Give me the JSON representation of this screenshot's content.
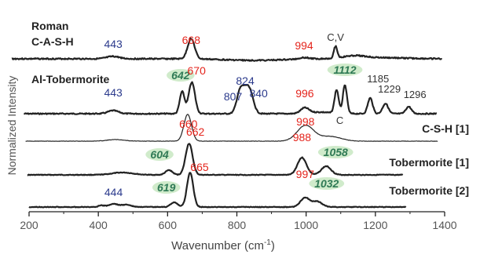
{
  "chart_data": {
    "type": "line",
    "xlabel": "Wavenumber (cm",
    "xlabel_sup": "-1",
    "xlabel_close": ")",
    "ylabel": "Normalized Intensity",
    "xlim": [
      200,
      1400
    ],
    "x_ticks": [
      200,
      400,
      600,
      800,
      1000,
      1200,
      1400
    ],
    "grid": false,
    "colors": {
      "spectrum": "#222222",
      "peak_red": "#e4241c",
      "peak_navy": "#2b3a8c",
      "peak_teal": "#2f7a55",
      "peak_gray": "#333333",
      "highlight": "#c8e7c2"
    },
    "series": [
      {
        "name": "Roman C-A-S-H",
        "name_lines": [
          "Roman",
          "C-A-S-H"
        ],
        "label_pos": "top-left",
        "peaks": [
          {
            "label": "443",
            "x": 443,
            "color": "navy"
          },
          {
            "label": "668",
            "x": 668,
            "color": "red"
          },
          {
            "label": "994",
            "x": 994,
            "color": "red"
          },
          {
            "label": "C,V",
            "x": 1085,
            "color": "gray"
          }
        ]
      },
      {
        "name": "Al-Tobermorite",
        "name_lines": [
          "Al-Tobermorite"
        ],
        "label_pos": "left",
        "peaks": [
          {
            "label": "443",
            "x": 443,
            "color": "navy"
          },
          {
            "label": "642",
            "x": 642,
            "color": "teal"
          },
          {
            "label": "670",
            "x": 670,
            "color": "red"
          },
          {
            "label": "807",
            "x": 807,
            "color": "navy"
          },
          {
            "label": "824",
            "x": 824,
            "color": "navy"
          },
          {
            "label": "840",
            "x": 840,
            "color": "navy"
          },
          {
            "label": "996",
            "x": 996,
            "color": "red"
          },
          {
            "label": "1112",
            "x": 1112,
            "color": "teal"
          },
          {
            "label": "1185",
            "x": 1185,
            "color": "gray"
          },
          {
            "label": "1229",
            "x": 1229,
            "color": "gray"
          },
          {
            "label": "1296",
            "x": 1296,
            "color": "gray"
          }
        ]
      },
      {
        "name": "C-S-H [1]",
        "name_lines": [
          "C-S-H [1]"
        ],
        "label_pos": "right",
        "peaks": [
          {
            "label": "660",
            "x": 660,
            "color": "red"
          },
          {
            "label": "998",
            "x": 998,
            "color": "red"
          },
          {
            "label": "C",
            "x": 1070,
            "color": "gray"
          }
        ]
      },
      {
        "name": "Tobermorite [1]",
        "name_lines": [
          "Tobermorite [1]"
        ],
        "label_pos": "right",
        "peaks": [
          {
            "label": "604",
            "x": 604,
            "color": "teal"
          },
          {
            "label": "662",
            "x": 662,
            "color": "red"
          },
          {
            "label": "988",
            "x": 988,
            "color": "red"
          },
          {
            "label": "1058",
            "x": 1058,
            "color": "teal"
          }
        ]
      },
      {
        "name": "Tobermorite [2]",
        "name_lines": [
          "Tobermorite [2]"
        ],
        "label_pos": "right",
        "peaks": [
          {
            "label": "444",
            "x": 444,
            "color": "navy"
          },
          {
            "label": "619",
            "x": 619,
            "color": "teal"
          },
          {
            "label": "665",
            "x": 665,
            "color": "red"
          },
          {
            "label": "997",
            "x": 997,
            "color": "red"
          },
          {
            "label": "1032",
            "x": 1032,
            "color": "teal"
          }
        ]
      }
    ]
  }
}
